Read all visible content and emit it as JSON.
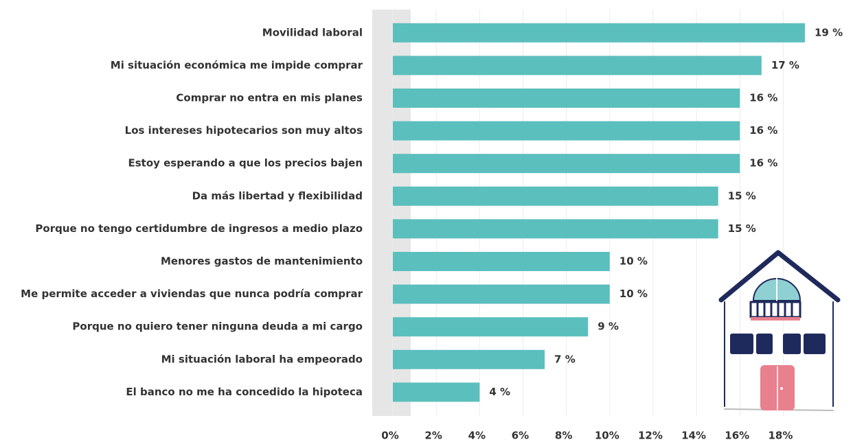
{
  "chart_data": {
    "type": "hbar",
    "categories": [
      "Movilidad laboral",
      "Mi situación económica me impide comprar",
      "Comprar no entra en mis planes",
      "Los intereses hipotecarios son muy altos",
      "Estoy esperando a que los precios bajen",
      "Da más libertad y flexibilidad",
      "Porque no tengo certidumbre de ingresos a medio plazo",
      "Menores gastos de mantenimiento",
      "Me permite acceder a viviendas que nunca podría comprar",
      "Porque no quiero tener ninguna deuda a mi cargo",
      "Mi situación laboral ha empeorado",
      "El banco no me ha concedido la hipoteca"
    ],
    "values": [
      19,
      17,
      16,
      16,
      16,
      15,
      15,
      10,
      10,
      9,
      7,
      4
    ],
    "value_labels": [
      "19 %",
      "17 %",
      "16 %",
      "16 %",
      "16 %",
      "15 %",
      "15 %",
      "10 %",
      "10 %",
      "9 %",
      "7 %",
      "4 %"
    ],
    "color": "#5bbfbd",
    "xlim": [
      0,
      19
    ],
    "xticks": [
      {
        "value": 0,
        "label": "0%"
      },
      {
        "value": 2,
        "label": "2%"
      },
      {
        "value": 4,
        "label": "4%"
      },
      {
        "value": 6,
        "label": "6%"
      },
      {
        "value": 8,
        "label": "8%"
      },
      {
        "value": 10,
        "label": "10%"
      },
      {
        "value": 12,
        "label": "12%"
      },
      {
        "value": 14,
        "label": "14%"
      },
      {
        "value": 16,
        "label": "16%"
      },
      {
        "value": 18,
        "label": "18%"
      }
    ],
    "grid": true
  }
}
